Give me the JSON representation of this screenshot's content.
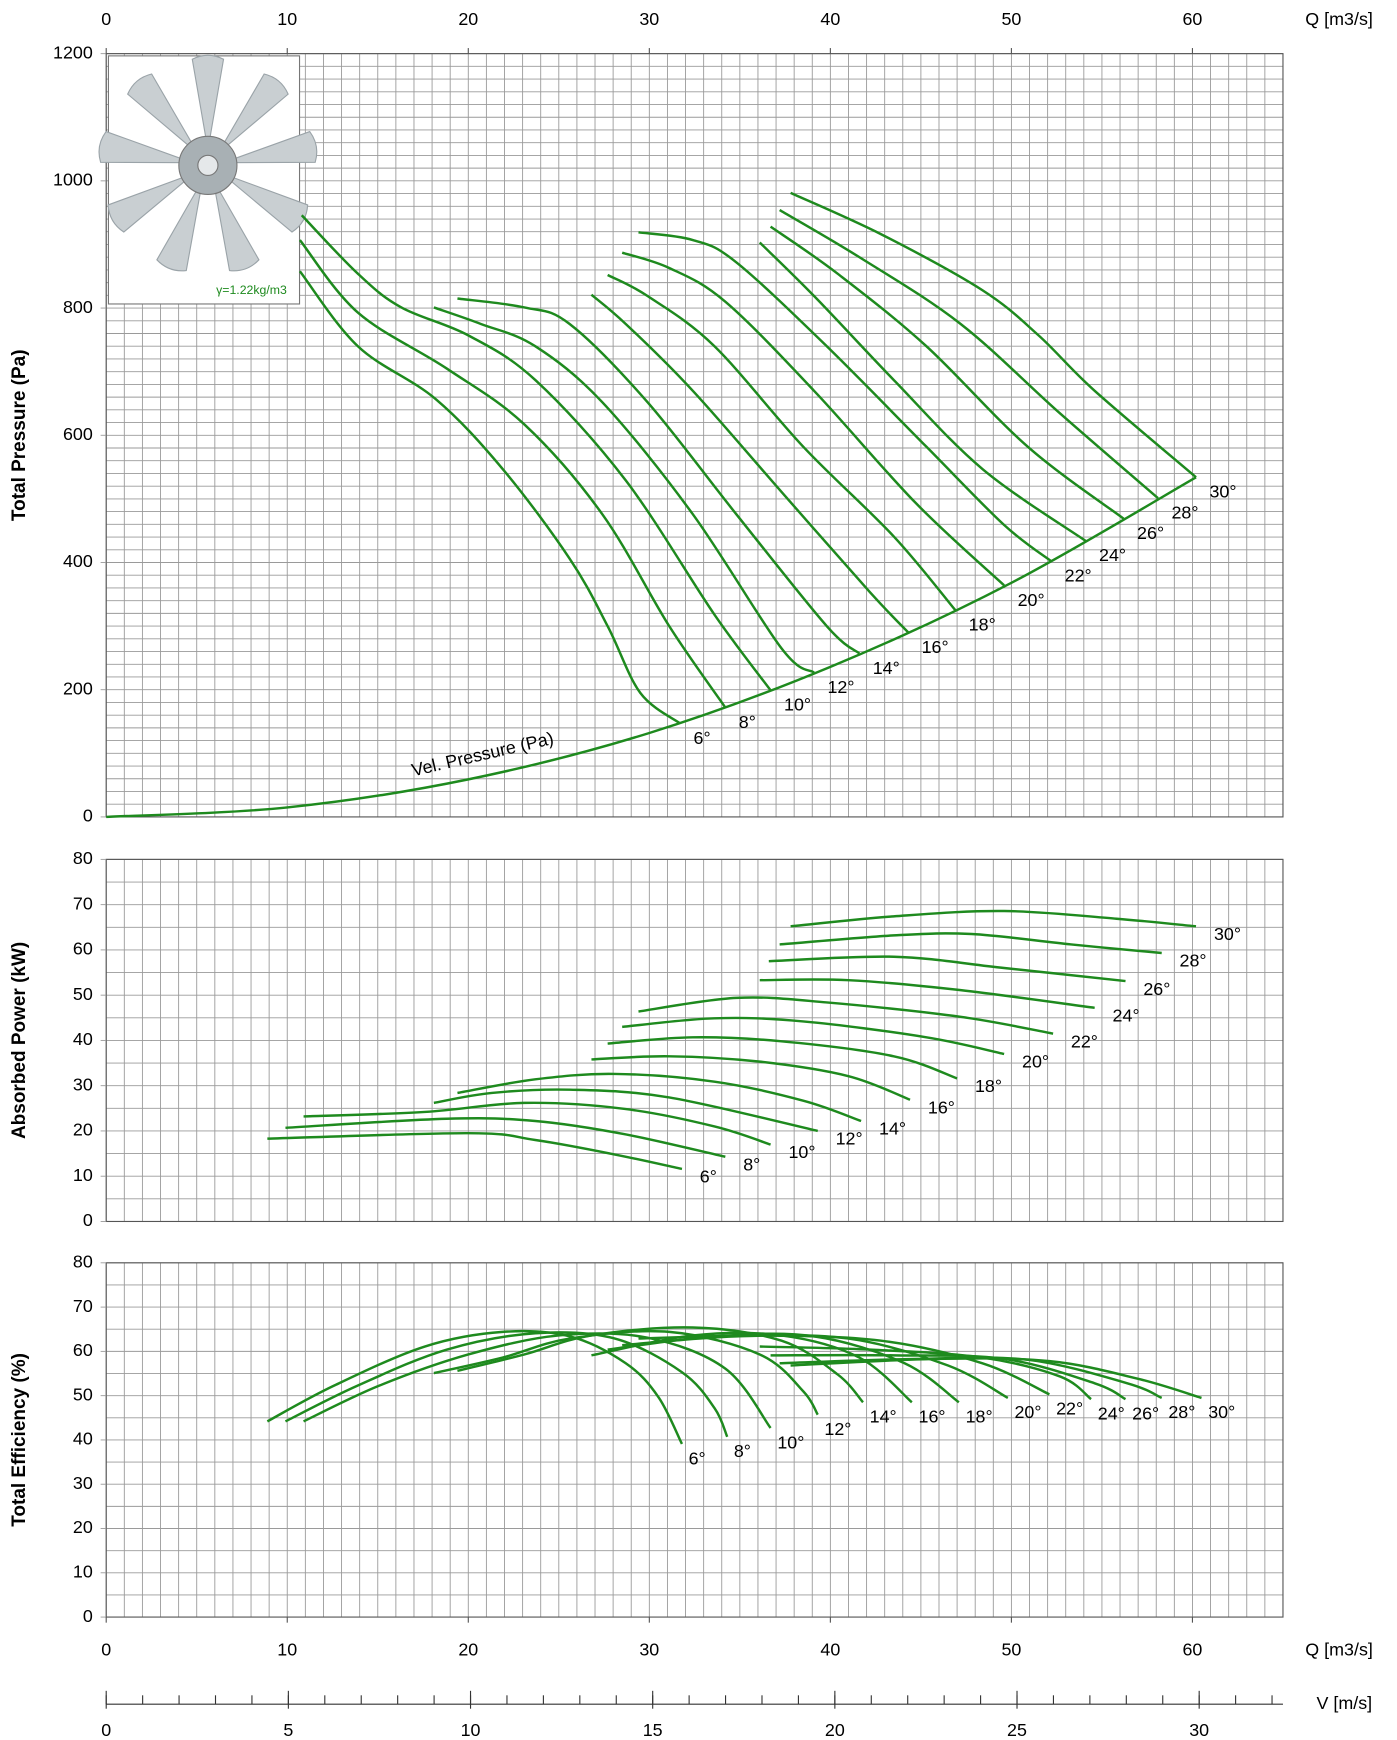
{
  "chart_data": [
    {
      "type": "line",
      "ylabel": "Total Pressure (Pa)",
      "xlabel": "Q [m3/s]",
      "xaxis": "top",
      "xlim": [
        0,
        65
      ],
      "xticks": [
        0,
        10,
        20,
        30,
        40,
        50,
        60
      ],
      "ylim": [
        0,
        1200
      ],
      "yticks": [
        0,
        200,
        400,
        600,
        800,
        1000,
        1200
      ],
      "grid_step": {
        "x": 1,
        "y": 20
      },
      "color": "#1e8a1e",
      "inset_label": "γ=1.22kg/m3",
      "velocity_pressure": {
        "name": "Vel. Pressure (Pa)",
        "x": [
          0,
          10,
          20,
          30,
          40,
          50,
          60.2
        ],
        "values": [
          0,
          15,
          59,
          132,
          236,
          368,
          534
        ]
      },
      "series": [
        {
          "name": "6°",
          "x": [
            10.7,
            13.9,
            18.2,
            21.9,
            25.6,
            27.7,
            29.5,
            31.7
          ],
          "values": [
            858,
            740,
            657,
            547,
            406,
            300,
            195,
            147
          ]
        },
        {
          "name": "8°",
          "x": [
            10.7,
            13.9,
            18.8,
            23.1,
            27.4,
            31.1,
            34.2
          ],
          "values": [
            907,
            793,
            705,
            617,
            476,
            300,
            172
          ]
        },
        {
          "name": "10°",
          "x": [
            10.8,
            13.9,
            16.3,
            20.0,
            23.7,
            28.7,
            33.6,
            36.7
          ],
          "values": [
            946,
            854,
            801,
            757,
            687,
            529,
            318,
            199
          ]
        },
        {
          "name": "12°",
          "x": [
            18.1,
            20.7,
            23.7,
            27.4,
            32.4,
            37.3,
            39.1
          ],
          "values": [
            801,
            775,
            740,
            652,
            476,
            265,
            227
          ]
        },
        {
          "name": "14°",
          "x": [
            19.4,
            23.1,
            25.6,
            29.9,
            34.8,
            39.8,
            41.6
          ],
          "values": [
            815,
            801,
            775,
            652,
            476,
            300,
            257
          ]
        },
        {
          "name": "16°",
          "x": [
            26.8,
            28.7,
            32.4,
            37.3,
            42.2,
            44.3
          ],
          "values": [
            821,
            775,
            670,
            511,
            353,
            290
          ]
        },
        {
          "name": "18°",
          "x": [
            27.7,
            29.9,
            33.6,
            38.5,
            43.5,
            46.9
          ],
          "values": [
            852,
            819,
            740,
            582,
            441,
            325
          ]
        },
        {
          "name": "20°",
          "x": [
            28.5,
            31.1,
            34.2,
            39.1,
            44.7,
            49.6
          ],
          "values": [
            887,
            863,
            810,
            670,
            494,
            364
          ]
        },
        {
          "name": "22°",
          "x": [
            29.4,
            32.4,
            34.8,
            39.8,
            45.3,
            49.6,
            52.2
          ],
          "values": [
            919,
            907,
            872,
            740,
            582,
            459,
            402
          ]
        },
        {
          "name": "24°",
          "x": [
            36.1,
            39.1,
            43.5,
            48.4,
            54.1
          ],
          "values": [
            903,
            819,
            687,
            547,
            434
          ]
        },
        {
          "name": "26°",
          "x": [
            36.7,
            40.4,
            45.3,
            50.9,
            56.2
          ],
          "values": [
            928,
            854,
            740,
            582,
            469
          ]
        },
        {
          "name": "28°",
          "x": [
            37.2,
            41.6,
            47.2,
            52.7,
            58.1
          ],
          "values": [
            954,
            880,
            775,
            634,
            501
          ]
        },
        {
          "name": "30°",
          "x": [
            37.8,
            42.8,
            48.4,
            51.5,
            54.6,
            60.2
          ],
          "values": [
            981,
            916,
            828,
            757,
            670,
            534
          ]
        }
      ]
    },
    {
      "type": "line",
      "ylabel": "Absorbed Power (kW)",
      "xlim": [
        0,
        65
      ],
      "ylim": [
        0,
        80
      ],
      "yticks": [
        0,
        10,
        20,
        30,
        40,
        50,
        60,
        70,
        80
      ],
      "grid_step": {
        "x": 1,
        "y": 5
      },
      "color": "#1e8a1e",
      "series": [
        {
          "name": "6°",
          "x": [
            8.9,
            20.0,
            23.7,
            28.1,
            31.8
          ],
          "values": [
            18.3,
            19.5,
            18.0,
            14.8,
            11.6
          ]
        },
        {
          "name": "8°",
          "x": [
            9.9,
            18.8,
            23.7,
            28.6,
            34.2
          ],
          "values": [
            20.7,
            22.7,
            22.2,
            19.3,
            14.3
          ]
        },
        {
          "name": "10°",
          "x": [
            10.9,
            17.6,
            23.1,
            28.6,
            33.6,
            36.7
          ],
          "values": [
            23.2,
            24.2,
            26.2,
            24.9,
            21.0,
            17.0
          ]
        },
        {
          "name": "12°",
          "x": [
            18.1,
            21.3,
            25.6,
            31.1,
            39.3
          ],
          "values": [
            26.2,
            28.4,
            29.1,
            27.4,
            20.0
          ]
        },
        {
          "name": "14°",
          "x": [
            19.4,
            23.7,
            28.1,
            33.6,
            38.5,
            41.7
          ],
          "values": [
            28.4,
            31.4,
            32.6,
            30.9,
            26.7,
            22.2
          ]
        },
        {
          "name": "16°",
          "x": [
            26.8,
            31.1,
            36.1,
            41.0,
            44.4
          ],
          "values": [
            35.8,
            36.5,
            35.3,
            32.1,
            26.9
          ]
        },
        {
          "name": "18°",
          "x": [
            27.7,
            32.4,
            37.3,
            43.5,
            47.0
          ],
          "values": [
            39.3,
            40.7,
            39.8,
            36.5,
            31.6
          ]
        },
        {
          "name": "20°",
          "x": [
            28.5,
            33.6,
            38.5,
            45.3,
            49.6
          ],
          "values": [
            43.0,
            44.9,
            44.2,
            40.7,
            37.0
          ]
        },
        {
          "name": "22°",
          "x": [
            29.4,
            34.8,
            39.8,
            47.2,
            52.3
          ],
          "values": [
            46.4,
            49.4,
            48.4,
            45.2,
            41.5
          ]
        },
        {
          "name": "24°",
          "x": [
            36.1,
            41.0,
            47.2,
            54.6
          ],
          "values": [
            53.3,
            53.3,
            51.1,
            47.2
          ]
        },
        {
          "name": "26°",
          "x": [
            36.6,
            43.5,
            49.6,
            56.3
          ],
          "values": [
            57.5,
            58.5,
            56.0,
            53.1
          ]
        },
        {
          "name": "28°",
          "x": [
            37.2,
            43.5,
            47.8,
            53.3,
            58.3
          ],
          "values": [
            61.2,
            63.2,
            63.5,
            61.2,
            59.3
          ]
        },
        {
          "name": "30°",
          "x": [
            37.8,
            43.5,
            49.6,
            55.8,
            60.2
          ],
          "values": [
            65.2,
            67.4,
            68.6,
            66.9,
            65.2
          ]
        }
      ]
    },
    {
      "type": "line",
      "ylabel": "Total Efficiency (%)",
      "xlabel": "Q [m3/s]",
      "xaxis": "bottom",
      "xlim": [
        0,
        65
      ],
      "xticks": [
        0,
        10,
        20,
        30,
        40,
        50,
        60
      ],
      "ylim": [
        0,
        80
      ],
      "yticks": [
        0,
        10,
        20,
        30,
        40,
        50,
        60,
        70,
        80
      ],
      "grid_step": {
        "x": 1,
        "y": 5
      },
      "color": "#1e8a1e",
      "x2label": "V [m/s]",
      "x2lim": [
        0,
        32.3
      ],
      "x2ticks": [
        0,
        5,
        10,
        15,
        20,
        25,
        30
      ],
      "x2minor_step": 1,
      "series": [
        {
          "name": "6°",
          "x": [
            8.9,
            12.6,
            17.6,
            21.9,
            25.6,
            28.7,
            30.5,
            31.8
          ],
          "values": [
            44.2,
            52.3,
            61.1,
            64.4,
            63.4,
            57.3,
            49.7,
            39.1
          ]
        },
        {
          "name": "8°",
          "x": [
            9.9,
            13.9,
            18.8,
            23.7,
            28.1,
            31.8,
            33.6,
            34.3
          ],
          "values": [
            44.2,
            52.3,
            60.4,
            64.1,
            62.9,
            55.3,
            47.2,
            40.7
          ]
        },
        {
          "name": "10°",
          "x": [
            10.9,
            15.1,
            20.0,
            25.0,
            29.9,
            34.2,
            36.7
          ],
          "values": [
            44.2,
            52.3,
            59.3,
            63.6,
            63.1,
            56.1,
            42.7
          ]
        },
        {
          "name": "12°",
          "x": [
            18.1,
            21.9,
            25.6,
            31.1,
            36.1,
            38.5,
            39.3
          ],
          "values": [
            55.1,
            58.6,
            62.9,
            64.4,
            59.3,
            51.0,
            45.7
          ]
        },
        {
          "name": "14°",
          "x": [
            19.4,
            23.1,
            26.8,
            32.4,
            37.3,
            40.4,
            41.8
          ],
          "values": [
            55.6,
            59.3,
            63.6,
            65.4,
            62.4,
            54.8,
            48.5
          ]
        },
        {
          "name": "16°",
          "x": [
            26.8,
            32.4,
            37.3,
            41.6,
            44.5
          ],
          "values": [
            59.1,
            63.6,
            63.6,
            58.6,
            48.5
          ]
        },
        {
          "name": "18°",
          "x": [
            27.7,
            33.6,
            39.1,
            44.1,
            47.1
          ],
          "values": [
            60.4,
            63.4,
            63.4,
            57.3,
            48.5
          ]
        },
        {
          "name": "20°",
          "x": [
            28.5,
            34.8,
            41.0,
            46.5,
            49.8
          ],
          "values": [
            61.4,
            63.4,
            62.9,
            56.8,
            49.5
          ]
        },
        {
          "name": "22°",
          "x": [
            29.4,
            36.1,
            42.8,
            48.4,
            52.1
          ],
          "values": [
            62.9,
            63.6,
            62.4,
            57.3,
            50.3
          ]
        },
        {
          "name": "24°",
          "x": [
            36.1,
            42.2,
            48.4,
            52.7,
            54.4
          ],
          "values": [
            61.1,
            60.4,
            58.6,
            54.3,
            49.2
          ]
        },
        {
          "name": "26°",
          "x": [
            36.7,
            43.5,
            49.6,
            54.6,
            56.3
          ],
          "values": [
            59.1,
            59.1,
            58.3,
            52.8,
            49.2
          ]
        },
        {
          "name": "28°",
          "x": [
            37.2,
            44.7,
            50.9,
            56.4,
            58.3
          ],
          "values": [
            57.3,
            58.3,
            58.1,
            52.8,
            49.5
          ]
        },
        {
          "name": "30°",
          "x": [
            37.8,
            45.9,
            52.1,
            57.0,
            60.5
          ],
          "values": [
            56.8,
            58.3,
            57.8,
            53.8,
            49.5
          ]
        }
      ]
    }
  ]
}
